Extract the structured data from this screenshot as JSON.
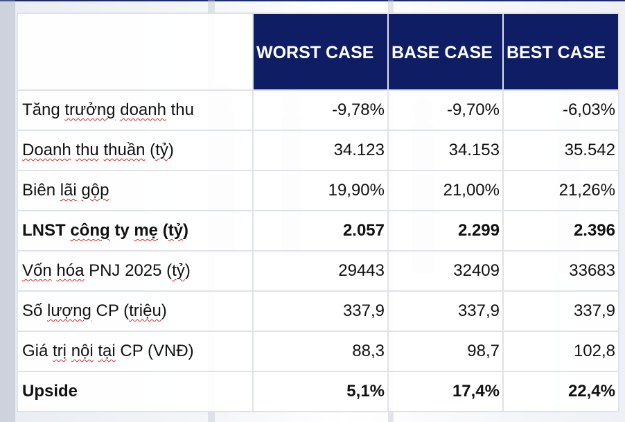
{
  "table": {
    "headers": [
      "",
      "WORST CASE",
      "BASE CASE",
      "BEST CASE"
    ],
    "rows": [
      {
        "label_parts": [
          "Tăng ",
          "trưởng",
          " ",
          "doanh",
          " thu"
        ],
        "values": [
          "-9,78%",
          "-9,70%",
          "-6,03%"
        ],
        "bold": false
      },
      {
        "label_parts": [
          "Doanh",
          " ",
          "thu",
          " ",
          "thuần",
          " (",
          "tỷ",
          ")"
        ],
        "values": [
          "34.123",
          "34.153",
          "35.542"
        ],
        "bold": false
      },
      {
        "label_parts": [
          "Biên ",
          "lãi",
          " ",
          "gộp"
        ],
        "values": [
          "19,90%",
          "21,00%",
          "21,26%"
        ],
        "bold": false
      },
      {
        "label_parts": [
          "LNST ",
          "công",
          " ty ",
          "mẹ",
          " (",
          "tỷ",
          ")"
        ],
        "values": [
          "2.057",
          "2.299",
          "2.396"
        ],
        "bold": true
      },
      {
        "label_parts": [
          "Vốn",
          " ",
          "hóa",
          " PNJ 2025 (",
          "tỷ",
          ")"
        ],
        "values": [
          "29443",
          "32409",
          "33683"
        ],
        "bold": false
      },
      {
        "label_parts": [
          "Số ",
          "lượng",
          " CP (",
          "triệu",
          ")"
        ],
        "values": [
          "337,9",
          "337,9",
          "337,9"
        ],
        "bold": false
      },
      {
        "label_parts": [
          "Giá ",
          "trị",
          " ",
          "nội",
          " ",
          "tại",
          " CP (VNĐ)"
        ],
        "values": [
          "88,3",
          "98,7",
          "102,8"
        ],
        "bold": false
      }
    ],
    "upside": {
      "label": "Upside",
      "values": [
        "5,1%",
        "17,4%",
        "22,4%"
      ]
    }
  },
  "colors": {
    "header_bg": "#0f1e64",
    "header_text": "#ffffff",
    "grid": "#dfe2e8",
    "spellcheck_underline": "#d22626"
  }
}
